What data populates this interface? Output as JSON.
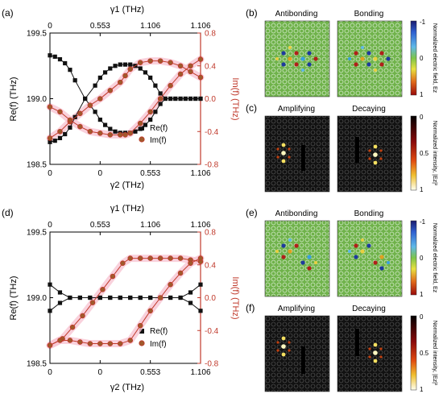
{
  "chart_data": [
    {
      "panel": "(a)",
      "type": "scatter",
      "top_xlabel": "γ1 (THz)",
      "top_ticks": [
        "0",
        "0.553",
        "1.106",
        "1.106"
      ],
      "bottom_xlabel": "γ2 (THz)",
      "bottom_ticks": [
        "0",
        "0",
        "0.553",
        "1.106"
      ],
      "ylabel_left": "Re(f) (THz)",
      "ylabel_right": "Im(f) (THz)",
      "ylim_left": [
        198.5,
        199.5
      ],
      "left_ticks": [
        "199.5",
        "199.0",
        "198.5"
      ],
      "ylim_right": [
        -0.8,
        0.8
      ],
      "right_ticks": [
        "0.8",
        "0.4",
        "0.0",
        "-0.4",
        "-0.8"
      ],
      "legend": [
        "Re(f)",
        "Im(f)"
      ],
      "series": [
        {
          "name": "Re(f)",
          "axis": "left",
          "x": [
            0,
            0.2,
            0.4,
            0.6,
            0.8,
            1,
            1.4,
            1.8,
            2,
            2.2,
            2.4,
            2.6,
            2.8,
            3,
            3.2,
            3.4,
            3.6,
            3.8,
            4,
            4.2,
            4.4,
            4.6,
            4.8,
            5,
            5.2,
            5.4,
            5.6,
            5.8,
            6
          ],
          "y": [
            199.33,
            199.32,
            199.3,
            199.27,
            199.22,
            199.14,
            199.0,
            198.9,
            198.84,
            198.8,
            198.77,
            198.75,
            198.74,
            198.74,
            198.74,
            198.75,
            198.77,
            198.8,
            198.84,
            198.9,
            198.96,
            199.0,
            199.0,
            199.0,
            199.0,
            199.0,
            199.0,
            199.0,
            199.0
          ]
        },
        {
          "name": "Re(f)",
          "axis": "left",
          "x": [
            0,
            0.2,
            0.4,
            0.6,
            0.8,
            1,
            1.4,
            1.8,
            2,
            2.2,
            2.4,
            2.6,
            2.8,
            3,
            3.2,
            3.4,
            3.6,
            3.8,
            4,
            4.2,
            4.4,
            4.6,
            4.8,
            5,
            5.2,
            5.4,
            5.6,
            5.8,
            6
          ],
          "y": [
            198.67,
            198.68,
            198.7,
            198.73,
            198.78,
            198.86,
            199.0,
            199.1,
            199.16,
            199.2,
            199.23,
            199.25,
            199.26,
            199.26,
            199.26,
            199.25,
            199.23,
            199.2,
            199.16,
            199.1,
            199.04,
            199.0,
            199.0,
            199.0,
            199.0,
            199.0,
            199.0,
            199.0,
            199.0
          ]
        },
        {
          "name": "Im(f)",
          "axis": "right",
          "x": [
            0,
            0.4,
            0.8,
            1.2,
            1.6,
            2,
            2.4,
            2.8,
            3,
            3.2,
            3.6,
            4,
            4.4,
            4.8,
            5.2,
            5.6,
            6
          ],
          "y": [
            -0.48,
            -0.4,
            -0.28,
            -0.18,
            -0.08,
            0.0,
            0.1,
            0.2,
            0.28,
            0.36,
            0.44,
            0.46,
            0.46,
            0.44,
            0.4,
            0.33,
            0.26
          ]
        },
        {
          "name": "Im(f)",
          "axis": "right",
          "x": [
            0,
            0.4,
            0.8,
            1.2,
            1.6,
            2,
            2.4,
            2.8,
            3,
            3.2,
            3.6,
            4,
            4.4,
            4.8,
            5.2,
            5.6,
            6
          ],
          "y": [
            -0.1,
            -0.16,
            -0.26,
            -0.34,
            -0.4,
            -0.42,
            -0.44,
            -0.44,
            -0.44,
            -0.42,
            -0.3,
            -0.16,
            0.0,
            0.16,
            0.3,
            0.4,
            0.48
          ]
        }
      ]
    },
    {
      "panel": "(d)",
      "type": "scatter",
      "top_xlabel": "γ1 (THz)",
      "top_ticks": [
        "0",
        "0.553",
        "1.106",
        "1.106"
      ],
      "bottom_xlabel": "γ2 (THz)",
      "bottom_ticks": [
        "0",
        "0",
        "0.553",
        "1.106"
      ],
      "ylabel_left": "Re(f) (THz)",
      "ylabel_right": "Im(f) (THz)",
      "ylim_left": [
        198.5,
        199.5
      ],
      "left_ticks": [
        "199.5",
        "199.0",
        "198.5"
      ],
      "ylim_right": [
        -0.8,
        0.8
      ],
      "right_ticks": [
        "0.8",
        "0.4",
        "0.0",
        "-0.4",
        "-0.8"
      ],
      "legend": [
        "Re(f)",
        "Im(f)"
      ],
      "series": [
        {
          "name": "Re(f)",
          "axis": "left",
          "x": [
            0,
            0.4,
            0.8,
            1.2,
            1.6,
            2,
            2.4,
            2.8,
            3.2,
            3.6,
            4,
            4.4,
            4.8,
            5.2,
            5.6,
            6
          ],
          "y": [
            199.1,
            199.04,
            199.0,
            199.0,
            199.0,
            199.0,
            199.0,
            199.0,
            199.0,
            199.0,
            199.0,
            199.0,
            199.0,
            199.0,
            199.04,
            199.1
          ]
        },
        {
          "name": "Re(f)",
          "axis": "left",
          "x": [
            0,
            0.4,
            0.8,
            1.2,
            1.6,
            2,
            2.4,
            2.8,
            3.2,
            3.6,
            4,
            4.4,
            4.8,
            5.2,
            5.6,
            6
          ],
          "y": [
            198.9,
            198.96,
            199.0,
            199.0,
            199.0,
            199.0,
            199.0,
            199.0,
            199.0,
            199.0,
            199.0,
            199.0,
            199.0,
            199.0,
            198.96,
            198.9
          ]
        },
        {
          "name": "Im(f)",
          "axis": "right",
          "x": [
            0,
            0.5,
            0.9,
            1.3,
            1.7,
            2.1,
            2.5,
            2.9,
            3.2,
            3.6,
            4,
            4.4,
            4.8,
            5.2,
            5.6,
            6
          ],
          "y": [
            -0.58,
            -0.5,
            -0.36,
            -0.22,
            -0.06,
            0.1,
            0.26,
            0.42,
            0.48,
            0.48,
            0.48,
            0.48,
            0.48,
            0.48,
            0.46,
            0.44
          ]
        },
        {
          "name": "Im(f)",
          "axis": "right",
          "x": [
            0,
            0.4,
            0.8,
            1.2,
            1.6,
            2,
            2.4,
            2.8,
            3.2,
            3.6,
            4,
            4.4,
            4.8,
            5.2,
            5.6,
            6
          ],
          "y": [
            -0.58,
            -0.52,
            -0.52,
            -0.54,
            -0.56,
            -0.56,
            -0.56,
            -0.56,
            -0.52,
            -0.34,
            -0.16,
            0.0,
            0.16,
            0.3,
            0.42,
            0.48
          ]
        }
      ]
    }
  ],
  "panels": {
    "b": {
      "tag": "(b)",
      "left_title": "Antibonding",
      "right_title": "Bonding",
      "cbar_label": "Normalized electric field, Ez",
      "cbar_ticks": [
        "-1",
        "0",
        "1"
      ]
    },
    "c": {
      "tag": "(c)",
      "left_title": "Amplifying",
      "right_title": "Decaying",
      "cbar_label": "Normalized intensity, |Ez|²",
      "cbar_ticks": [
        "0",
        "0.5",
        "1"
      ]
    },
    "e": {
      "tag": "(e)",
      "left_title": "Antibonding",
      "right_title": "Bonding",
      "cbar_label": "Normalized electric field, Ez",
      "cbar_ticks": [
        "-1",
        "0",
        "1"
      ]
    },
    "f": {
      "tag": "(f)",
      "left_title": "Amplifying",
      "right_title": "Decaying",
      "cbar_label": "Normalized intensity, |Ez|²",
      "cbar_ticks": [
        "0",
        "0.5",
        "1"
      ]
    }
  },
  "colors": {
    "re": "#111111",
    "im": "#c0392b",
    "im_fill": "#a05a2c",
    "field_bg": "#6fb24a",
    "intensity_bg": "#111111",
    "highlight": "#f7c6d3"
  }
}
